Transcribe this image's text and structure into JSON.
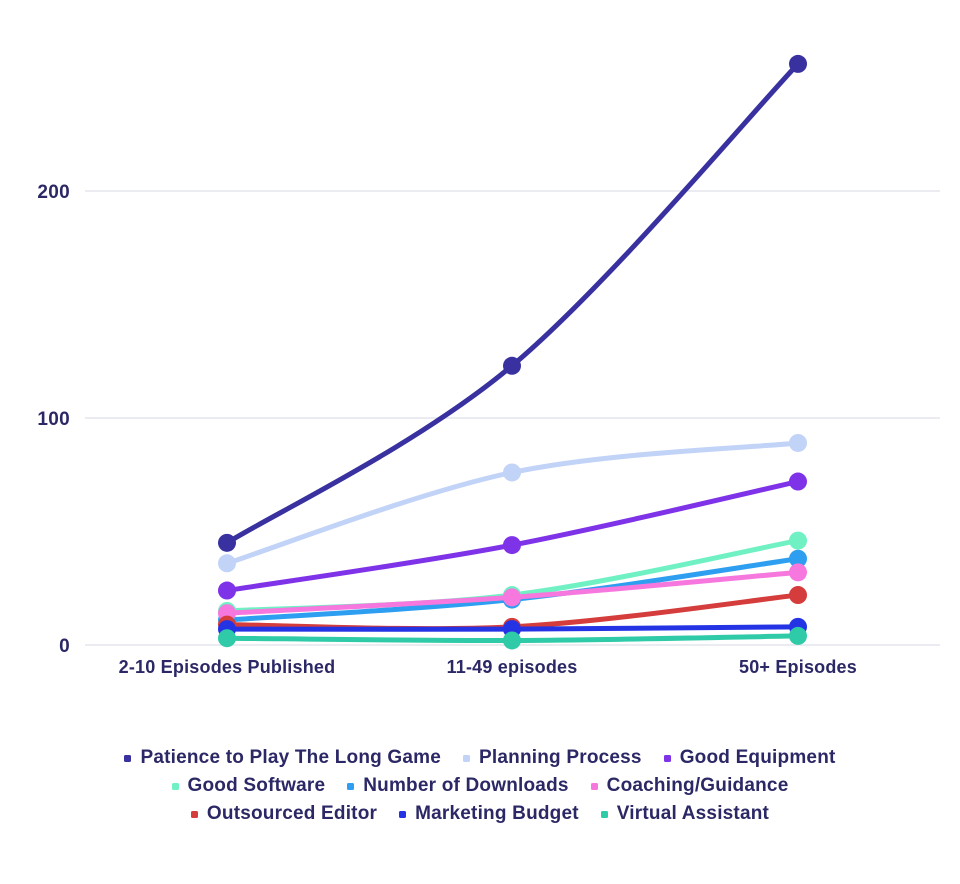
{
  "colors": {
    "text": "#2b2865",
    "gridline": "#ebebf2",
    "background": "#ffffff"
  },
  "y_axis": {
    "tick_labels": [
      "0",
      "100",
      "200"
    ]
  },
  "chart_data": {
    "type": "line",
    "categories": [
      "2-10 Episodes Published",
      "11-49 episodes",
      "50+ Episodes"
    ],
    "series": [
      {
        "name": "Patience to Play The Long Game",
        "color": "#38319f",
        "values": [
          45,
          123,
          256
        ]
      },
      {
        "name": "Planning Process",
        "color": "#c2d3f8",
        "values": [
          36,
          76,
          89
        ]
      },
      {
        "name": "Good Equipment",
        "color": "#7f33e8",
        "values": [
          24,
          44,
          72
        ]
      },
      {
        "name": "Good Software",
        "color": "#6ff1c4",
        "values": [
          15,
          22,
          46
        ]
      },
      {
        "name": "Number of Downloads",
        "color": "#2e9ff0",
        "values": [
          11,
          20,
          38
        ]
      },
      {
        "name": "Coaching/Guidance",
        "color": "#f678de",
        "values": [
          14,
          21,
          32
        ]
      },
      {
        "name": "Outsourced Editor",
        "color": "#d53c3c",
        "values": [
          9,
          8,
          22
        ]
      },
      {
        "name": "Marketing Budget",
        "color": "#2434e4",
        "values": [
          7,
          7,
          8
        ]
      },
      {
        "name": "Virtual Assistant",
        "color": "#2fcaa7",
        "values": [
          3,
          2,
          4
        ]
      }
    ],
    "yticks": [
      0,
      100,
      200
    ],
    "ylim": [
      0,
      266
    ],
    "grid": true,
    "legend_position": "bottom",
    "legend_rows": [
      [
        0,
        1,
        2
      ],
      [
        3,
        4,
        5
      ],
      [
        6,
        7,
        8
      ]
    ]
  }
}
